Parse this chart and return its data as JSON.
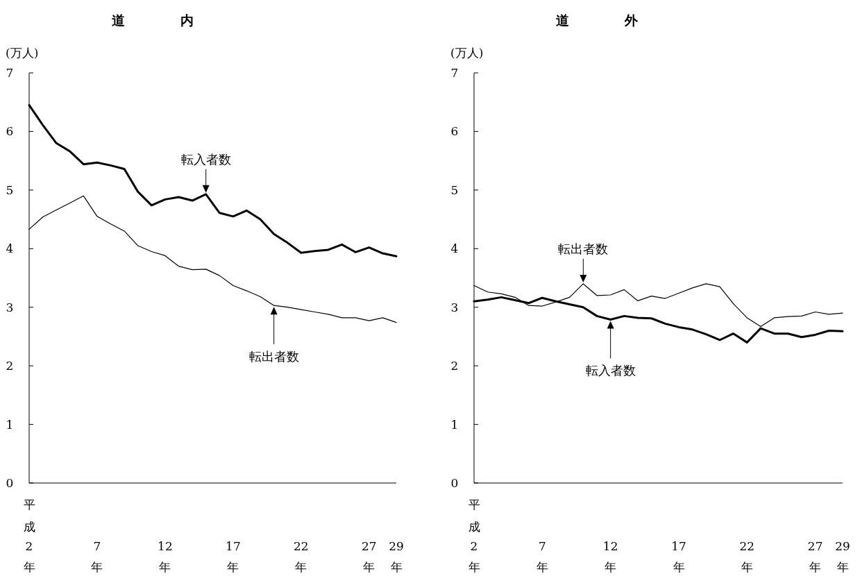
{
  "chart_data": [
    {
      "type": "line",
      "title": "道内",
      "ylabel": "(万人)",
      "categories": [
        "平成2年",
        null,
        null,
        null,
        null,
        "7年",
        null,
        null,
        null,
        null,
        "12年",
        null,
        null,
        null,
        null,
        "17年",
        null,
        null,
        null,
        null,
        "22年",
        null,
        null,
        null,
        null,
        "27年",
        null,
        "29年"
      ],
      "series": [
        {
          "name": "転入者数",
          "color": "#000000",
          "values": [
            6.45,
            6.11,
            5.8,
            5.66,
            5.44,
            5.47,
            5.42,
            5.36,
            4.97,
            4.74,
            4.84,
            4.88,
            4.82,
            4.93,
            4.61,
            4.55,
            4.65,
            4.5,
            4.25,
            4.1,
            3.93,
            3.96,
            3.98,
            4.07,
            3.94,
            4.02,
            3.92,
            3.87
          ]
        },
        {
          "name": "転出者数",
          "color": "#000000",
          "values": [
            4.33,
            4.54,
            4.66,
            4.78,
            4.9,
            4.55,
            4.42,
            4.3,
            4.05,
            3.95,
            3.88,
            3.7,
            3.64,
            3.65,
            3.54,
            3.37,
            3.28,
            3.18,
            3.03,
            3.0,
            2.96,
            2.92,
            2.88,
            2.82,
            2.82,
            2.77,
            2.82,
            2.74
          ]
        }
      ],
      "ylim": [
        0,
        7
      ],
      "yticks": [
        0,
        1,
        2,
        3,
        4,
        5,
        6,
        7
      ],
      "grid": false,
      "legend": false,
      "marker": "none",
      "line_style": "solid"
    },
    {
      "type": "line",
      "title": "道外",
      "ylabel": "(万人)",
      "categories": [
        "平成2年",
        null,
        null,
        null,
        null,
        "7年",
        null,
        null,
        null,
        null,
        "12年",
        null,
        null,
        null,
        null,
        "17年",
        null,
        null,
        null,
        null,
        "22年",
        null,
        null,
        null,
        null,
        "27年",
        null,
        "29年"
      ],
      "series": [
        {
          "name": "転入者数",
          "color": "#000000",
          "values": [
            3.1,
            3.13,
            3.17,
            3.12,
            3.07,
            3.16,
            3.1,
            3.05,
            3.0,
            2.85,
            2.79,
            2.85,
            2.82,
            2.81,
            2.72,
            2.66,
            2.62,
            2.54,
            2.44,
            2.55,
            2.4,
            2.64,
            2.55,
            2.55,
            2.49,
            2.53,
            2.6,
            2.59
          ]
        },
        {
          "name": "転出者数",
          "color": "#000000",
          "values": [
            3.37,
            3.26,
            3.23,
            3.17,
            3.03,
            3.02,
            3.09,
            3.17,
            3.4,
            3.2,
            3.21,
            3.3,
            3.11,
            3.19,
            3.15,
            3.24,
            3.33,
            3.4,
            3.35,
            3.06,
            2.82,
            2.67,
            2.82,
            2.84,
            2.85,
            2.92,
            2.88,
            2.9
          ]
        }
      ],
      "ylim": [
        0,
        7
      ],
      "yticks": [
        0,
        1,
        2,
        3,
        4,
        5,
        6,
        7
      ],
      "grid": false,
      "legend": false,
      "marker": "none",
      "line_style": "solid"
    }
  ]
}
